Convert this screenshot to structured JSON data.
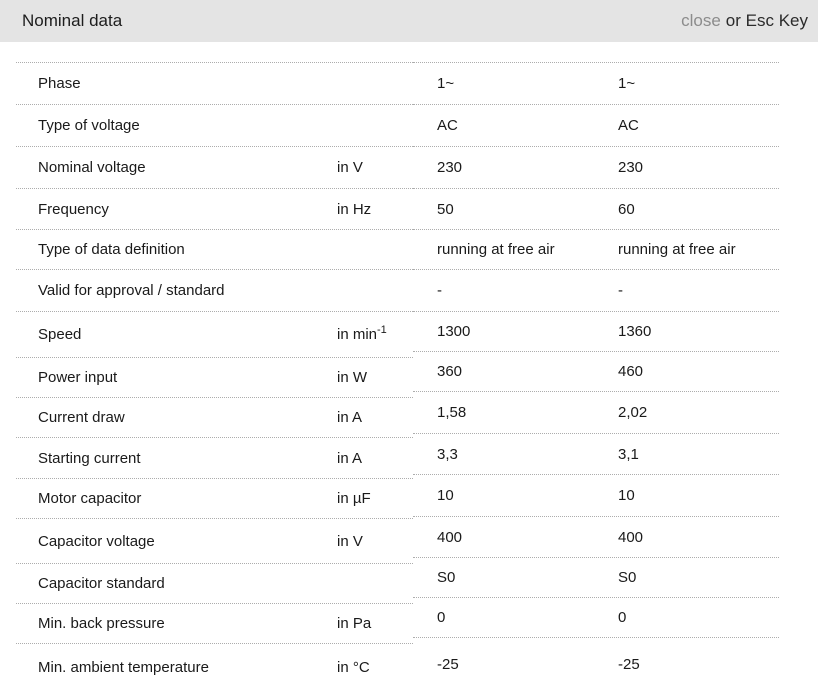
{
  "header": {
    "title": "Nominal data",
    "close_label": "close",
    "close_suffix": "or Esc Key"
  },
  "table": {
    "rows": [
      {
        "label": "Phase",
        "unit": "",
        "unit_sup": "",
        "v1": "1~",
        "v2": "1~"
      },
      {
        "label": "Type of voltage",
        "unit": "",
        "unit_sup": "",
        "v1": "AC",
        "v2": "AC"
      },
      {
        "label": "Nominal voltage",
        "unit": "in V",
        "unit_sup": "",
        "v1": "230",
        "v2": "230"
      },
      {
        "label": "Frequency",
        "unit": "in Hz",
        "unit_sup": "",
        "v1": "50",
        "v2": "60"
      },
      {
        "label": "Type of data definition",
        "unit": "",
        "unit_sup": "",
        "v1": "running at free air",
        "v2": "running at free air"
      },
      {
        "label": "Valid for approval / standard",
        "unit": "",
        "unit_sup": "",
        "v1": "-",
        "v2": "-"
      },
      {
        "label": "Speed",
        "unit": "in min",
        "unit_sup": "-1",
        "v1": "1300",
        "v2": "1360"
      },
      {
        "label": "Power input",
        "unit": "in W",
        "unit_sup": "",
        "v1": "360",
        "v2": "460"
      },
      {
        "label": "Current draw",
        "unit": "in A",
        "unit_sup": "",
        "v1": "1,58",
        "v2": "2,02"
      },
      {
        "label": "Starting current",
        "unit": "in A",
        "unit_sup": "",
        "v1": "3,3",
        "v2": "3,1"
      },
      {
        "label": "Motor capacitor",
        "unit": "in µF",
        "unit_sup": "",
        "v1": "10",
        "v2": "10"
      },
      {
        "label": "Capacitor voltage",
        "unit": "in V",
        "unit_sup": "",
        "v1": "400",
        "v2": "400"
      },
      {
        "label": "Capacitor standard",
        "unit": "",
        "unit_sup": "",
        "v1": "S0",
        "v2": "S0"
      },
      {
        "label": "Min. back pressure",
        "unit": "in Pa",
        "unit_sup": "",
        "v1": "0",
        "v2": "0"
      },
      {
        "label": "Min. ambient temperature",
        "unit": "in °C",
        "unit_sup": "",
        "v1": "-25",
        "v2": "-25"
      }
    ]
  },
  "colors": {
    "header_bg": "#e4e4e4",
    "close_link": "#8c8c8c",
    "separator": "#adadad",
    "text": "#1a1a1a"
  }
}
